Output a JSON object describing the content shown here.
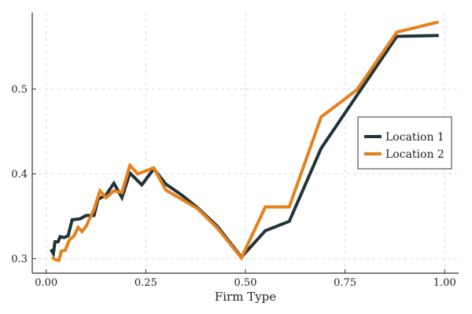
{
  "chart_data": {
    "type": "line",
    "title": "",
    "xlabel": "Firm Type",
    "ylabel": "",
    "xlim": [
      -0.035,
      1.035
    ],
    "ylim": [
      0.283,
      0.59
    ],
    "xticks": [
      0.0,
      0.25,
      0.5,
      0.75,
      1.0
    ],
    "xtick_labels": [
      "0.00",
      "0.25",
      "0.50",
      "0.75",
      "1.00"
    ],
    "yticks": [
      0.3,
      0.4,
      0.5
    ],
    "ytick_labels": [
      "0.3",
      "0.4",
      "0.5"
    ],
    "grid": true,
    "legend_position": "right",
    "series": [
      {
        "name": "Location 1",
        "color": "#1f3339",
        "points": [
          [
            0.012,
            0.311
          ],
          [
            0.018,
            0.306
          ],
          [
            0.022,
            0.32
          ],
          [
            0.03,
            0.32
          ],
          [
            0.035,
            0.326
          ],
          [
            0.045,
            0.325
          ],
          [
            0.055,
            0.327
          ],
          [
            0.065,
            0.346
          ],
          [
            0.085,
            0.347
          ],
          [
            0.1,
            0.351
          ],
          [
            0.12,
            0.351
          ],
          [
            0.13,
            0.37
          ],
          [
            0.15,
            0.375
          ],
          [
            0.17,
            0.389
          ],
          [
            0.19,
            0.372
          ],
          [
            0.21,
            0.401
          ],
          [
            0.24,
            0.387
          ],
          [
            0.27,
            0.406
          ],
          [
            0.3,
            0.388
          ],
          [
            0.34,
            0.375
          ],
          [
            0.38,
            0.36
          ],
          [
            0.43,
            0.338
          ],
          [
            0.49,
            0.302
          ],
          [
            0.55,
            0.333
          ],
          [
            0.61,
            0.344
          ],
          [
            0.69,
            0.43
          ],
          [
            0.88,
            0.562
          ],
          [
            0.985,
            0.563
          ]
        ]
      },
      {
        "name": "Location 2",
        "color": "#e6801d",
        "points": [
          [
            0.015,
            0.302
          ],
          [
            0.022,
            0.299
          ],
          [
            0.032,
            0.298
          ],
          [
            0.038,
            0.309
          ],
          [
            0.048,
            0.31
          ],
          [
            0.058,
            0.322
          ],
          [
            0.07,
            0.327
          ],
          [
            0.08,
            0.337
          ],
          [
            0.09,
            0.332
          ],
          [
            0.1,
            0.338
          ],
          [
            0.12,
            0.358
          ],
          [
            0.135,
            0.38
          ],
          [
            0.15,
            0.372
          ],
          [
            0.17,
            0.38
          ],
          [
            0.19,
            0.378
          ],
          [
            0.21,
            0.41
          ],
          [
            0.23,
            0.4
          ],
          [
            0.27,
            0.407
          ],
          [
            0.3,
            0.381
          ],
          [
            0.38,
            0.359
          ],
          [
            0.43,
            0.336
          ],
          [
            0.49,
            0.301
          ],
          [
            0.55,
            0.361
          ],
          [
            0.61,
            0.361
          ],
          [
            0.69,
            0.467
          ],
          [
            0.78,
            0.499
          ],
          [
            0.88,
            0.567
          ],
          [
            0.985,
            0.579
          ]
        ]
      }
    ]
  }
}
